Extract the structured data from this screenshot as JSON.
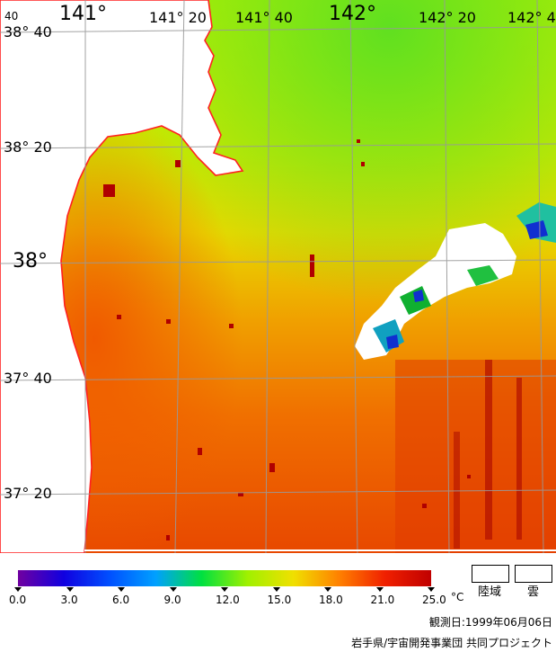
{
  "map": {
    "lon_labels": [
      "141°",
      "141° 20",
      "141° 40",
      "142°",
      "142° 20",
      "142° 4"
    ],
    "lon_left_fragment": "40",
    "lat_labels": [
      "38° 40",
      "38° 20",
      "38°",
      "37° 40",
      "37° 20"
    ]
  },
  "legend": {
    "ticks": [
      "0.0",
      "3.0",
      "6.0",
      "9.0",
      "12.0",
      "15.0",
      "18.0",
      "21.0",
      "25.0"
    ],
    "unit": "°C",
    "land_label": "陸域",
    "cloud_label": "雲",
    "colors": [
      "#7000a0",
      "#1000e0",
      "#0050ff",
      "#00a0ff",
      "#00e040",
      "#a0f000",
      "#f0e000",
      "#ff8000",
      "#f02000",
      "#c00000"
    ]
  },
  "footer": {
    "date": "観測日:1999年06月06日",
    "credit": "岩手県/宇宙開発事業団 共同プロジェクト"
  }
}
